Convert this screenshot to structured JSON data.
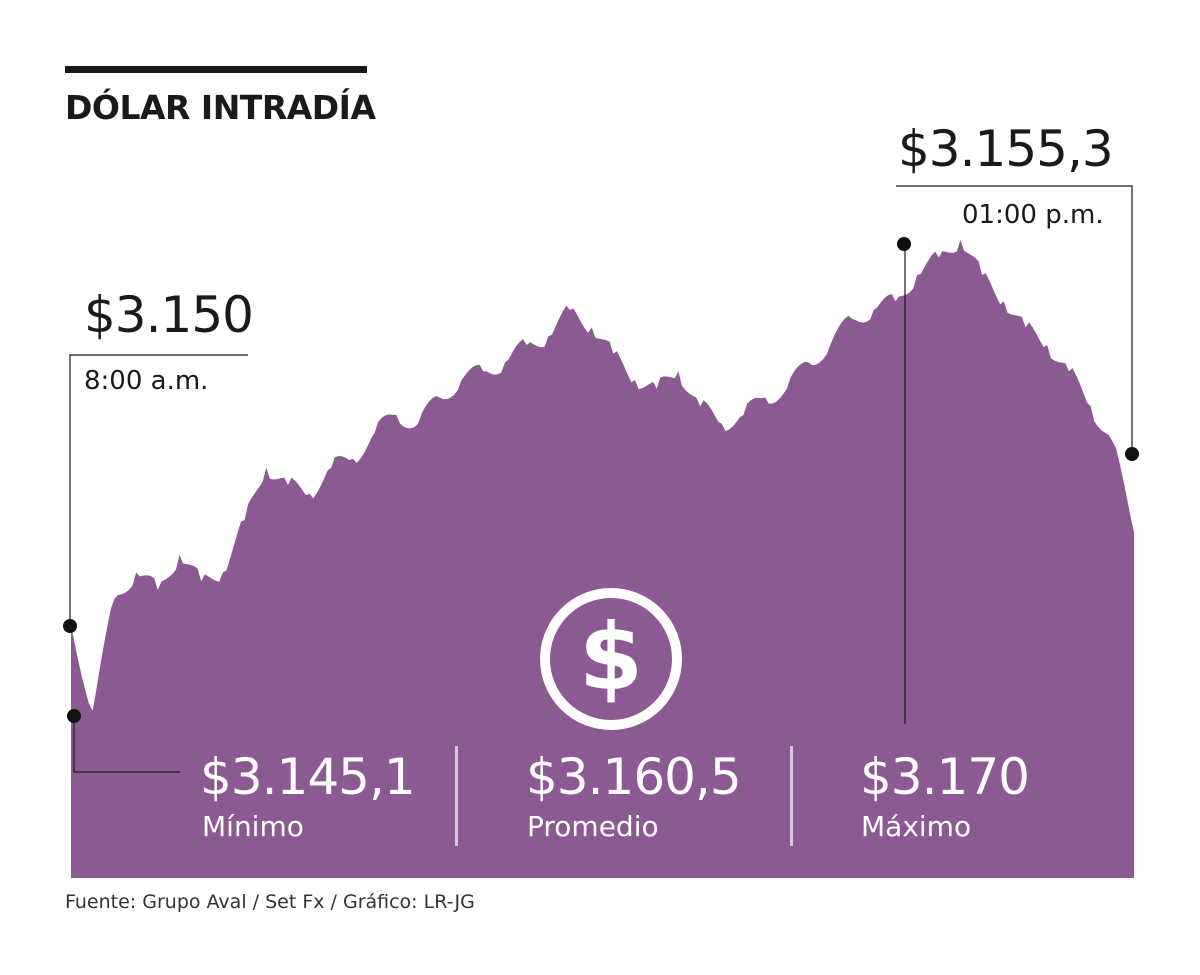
{
  "header": {
    "title": "DÓLAR INTRADÍA"
  },
  "callouts": {
    "open_value": "$3.150",
    "open_time": "8:00 a.m.",
    "peak_value": "$3.155,3",
    "peak_time": "01:00 p.m."
  },
  "stats": {
    "min_value": "$3.145,1",
    "min_label": "Mínimo",
    "avg_value": "$3.160,5",
    "avg_label": "Promedio",
    "max_value": "$3.170",
    "max_label": "Máximo"
  },
  "icon": {
    "name": "dollar-coin-icon",
    "glyph": "$"
  },
  "source": "Fuente: Grupo Aval / Set Fx / Gráfico: LR-JG",
  "colors": {
    "area": "#8b5a92",
    "text": "#1a1a1a",
    "separator": "#d8c8dd"
  },
  "chart_data": {
    "type": "area",
    "title": "DÓLAR INTRADÍA",
    "xlabel": "",
    "ylabel": "",
    "x_start": "8:00 a.m.",
    "ylim": [
      3144,
      3172
    ],
    "y": [
      3150,
      3145.1,
      3151.5,
      3153,
      3152,
      3154,
      3152.5,
      3153,
      3156,
      3159,
      3158,
      3157.5,
      3159,
      3159.5,
      3161,
      3162,
      3161.5,
      3163,
      3164,
      3164.5,
      3165,
      3166,
      3166.5,
      3168,
      3167,
      3165.5,
      3164,
      3163.5,
      3164.5,
      3162.5,
      3161.5,
      3162,
      3163,
      3163.5,
      3165,
      3166,
      3167.5,
      3168,
      3168.5,
      3170,
      3171,
      3172,
      3170,
      3168.5,
      3167,
      3166,
      3164.5,
      3162.5,
      3160.5,
      3155.3
    ]
  }
}
